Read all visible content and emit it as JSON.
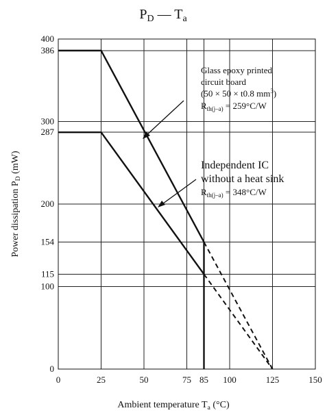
{
  "chart_data": {
    "type": "line",
    "title": {
      "main": "P",
      "main_sub": "D",
      "dash": " — ",
      "second": "T",
      "second_sub": "a"
    },
    "xlabel": {
      "text": "Ambient temperature T",
      "sub": "a",
      "unit": " (°C)"
    },
    "ylabel": {
      "text": "Power dissipation P",
      "sub": "D",
      "unit": " (mW)"
    },
    "xlim": [
      0,
      150
    ],
    "ylim": [
      0,
      400
    ],
    "x_ticks": [
      0,
      25,
      50,
      75,
      85,
      100,
      125,
      150
    ],
    "y_ticks": [
      0,
      100,
      115,
      154,
      200,
      287,
      300,
      386,
      400
    ],
    "grid": true,
    "series": [
      {
        "name": "Glass epoxy printed circuit board (50 × 50 × t0.8 mm³) Rth(j–a) = 259°C/W",
        "solid": [
          [
            0,
            386
          ],
          [
            25,
            386
          ],
          [
            85,
            154
          ],
          [
            85,
            0
          ]
        ],
        "dashed": [
          [
            85,
            154
          ],
          [
            125,
            0
          ]
        ]
      },
      {
        "name": "Independent IC without a heat sink Rth(j–a) = 348°C/W",
        "solid": [
          [
            0,
            287
          ],
          [
            25,
            287
          ],
          [
            85,
            115
          ]
        ],
        "dashed": [
          [
            85,
            115
          ],
          [
            125,
            0
          ]
        ]
      }
    ],
    "annotations": {
      "board": {
        "line1": "Glass epoxy printed",
        "line2": "circuit board",
        "line3_pre": "(50 × 50 × t0.8 mm",
        "line3_sup": "3",
        "line3_post": ")",
        "r_pre": "R",
        "r_sub": "th(j–a)",
        "r_post": " = 259°C/W"
      },
      "ic": {
        "line1": "Independent IC",
        "line2": "without a heat sink",
        "r_pre": "R",
        "r_sub": "th(j–a)",
        "r_post": " = 348°C/W"
      }
    }
  }
}
